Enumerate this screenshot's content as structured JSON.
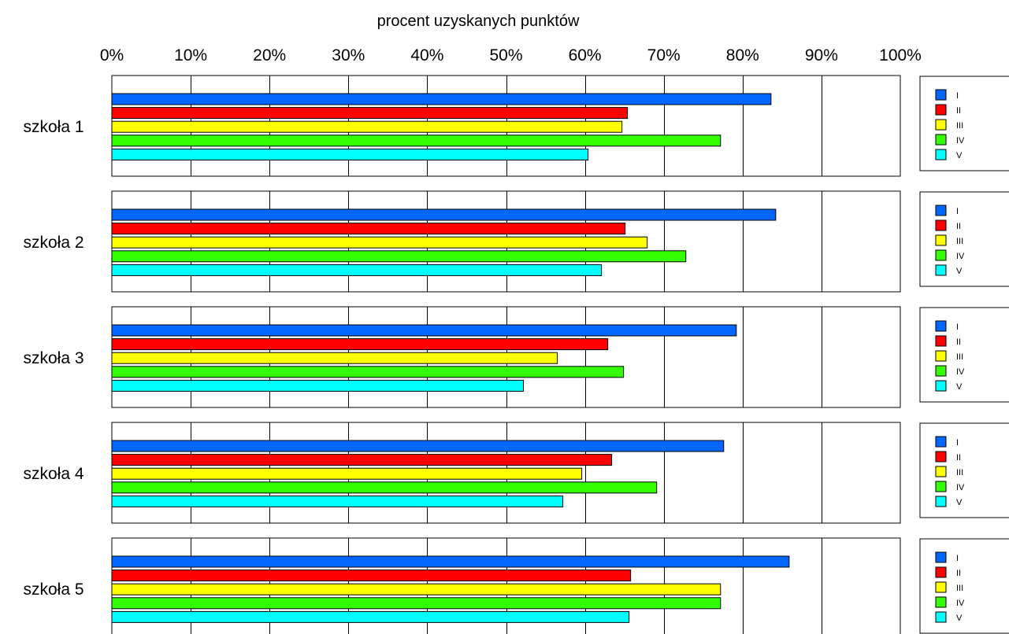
{
  "chart_data": {
    "type": "bar",
    "orientation": "horizontal",
    "title": "procent uzyskanych punktów",
    "xlim": [
      0,
      100
    ],
    "xticks": [
      0,
      10,
      20,
      30,
      40,
      50,
      60,
      70,
      80,
      90,
      100
    ],
    "xtick_labels": [
      "0%",
      "10%",
      "20%",
      "30%",
      "40%",
      "50%",
      "60%",
      "70%",
      "80%",
      "90%",
      "100%"
    ],
    "grid": true,
    "legend_placement": "right of each panel",
    "series": [
      {
        "name": "I",
        "color": "#0066ff"
      },
      {
        "name": "II",
        "color": "#ff0000"
      },
      {
        "name": "III",
        "color": "#ffff00"
      },
      {
        "name": "IV",
        "color": "#33ff00"
      },
      {
        "name": "V",
        "color": "#00ffff"
      }
    ],
    "panels": [
      {
        "label": "szkoła 1",
        "values": [
          83.6,
          65.4,
          64.7,
          77.2,
          60.4
        ]
      },
      {
        "label": "szkoła 2",
        "values": [
          84.2,
          65.1,
          67.9,
          72.8,
          62.1
        ]
      },
      {
        "label": "szkoła 3",
        "values": [
          79.2,
          62.9,
          56.5,
          64.9,
          52.2
        ]
      },
      {
        "label": "szkoła 4",
        "values": [
          77.6,
          63.4,
          59.6,
          69.1,
          57.2
        ]
      },
      {
        "label": "szkoła 5",
        "values": [
          85.9,
          65.8,
          77.2,
          77.2,
          65.6
        ]
      }
    ]
  }
}
